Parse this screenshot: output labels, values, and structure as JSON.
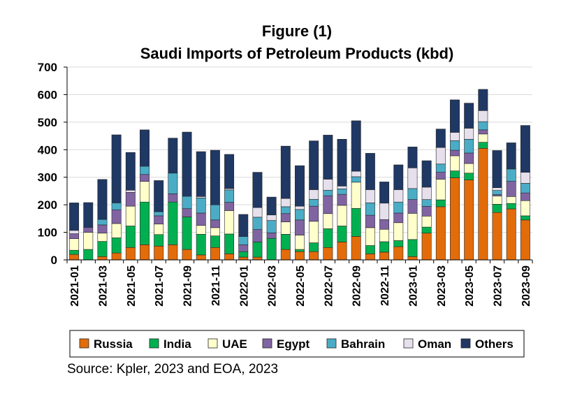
{
  "chart_data": {
    "type": "bar",
    "stacked": true,
    "title": "Figure (1)",
    "subtitle": "Saudi Imports of Petroleum Products (kbd)",
    "xlabel": "",
    "ylabel": "",
    "ylim": [
      0,
      700
    ],
    "yticks": [
      0,
      100,
      200,
      300,
      400,
      500,
      600,
      700
    ],
    "grid": true,
    "legend_position": "bottom",
    "categories": [
      "2021-01",
      "2021-02",
      "2021-03",
      "2021-04",
      "2021-05",
      "2021-06",
      "2021-07",
      "2021-08",
      "2021-09",
      "2021-10",
      "2021-11",
      "2021-12",
      "2022-01",
      "2022-02",
      "2022-03",
      "2022-04",
      "2022-05",
      "2022-06",
      "2022-07",
      "2022-08",
      "2022-09",
      "2022-10",
      "2022-11",
      "2022-12",
      "2023-01",
      "2023-02",
      "2023-03",
      "2023-04",
      "2023-05",
      "2023-06",
      "2023-07",
      "2023-08",
      "2023-09"
    ],
    "tick_labels": [
      "2021-01",
      "2021-03",
      "2021-05",
      "2021-07",
      "2021-09",
      "2021-11",
      "2022-01",
      "2022-03",
      "2022-05",
      "2022-07",
      "2022-09",
      "2022-11",
      "2023-01",
      "2023-03",
      "2023-05",
      "2023-07",
      "2023-09"
    ],
    "series": [
      {
        "name": "Russia",
        "color": "#E36C0A",
        "values": [
          20,
          0,
          12,
          25,
          45,
          55,
          50,
          55,
          38,
          18,
          45,
          22,
          10,
          10,
          0,
          38,
          30,
          30,
          45,
          65,
          85,
          22,
          28,
          48,
          12,
          97,
          193,
          298,
          290,
          405,
          172,
          185,
          145
        ]
      },
      {
        "name": "India",
        "color": "#00B050",
        "values": [
          15,
          38,
          55,
          55,
          78,
          155,
          42,
          155,
          118,
          75,
          42,
          72,
          20,
          55,
          78,
          55,
          8,
          32,
          68,
          58,
          102,
          30,
          38,
          22,
          62,
          22,
          25,
          25,
          25,
          22,
          30,
          20,
          15
        ]
      },
      {
        "name": "UAE",
        "color": "#FFFFCC",
        "values": [
          42,
          62,
          30,
          52,
          72,
          75,
          38,
          0,
          0,
          32,
          30,
          85,
          0,
          0,
          0,
          45,
          52,
          78,
          55,
          75,
          95,
          65,
          45,
          65,
          95,
          40,
          75,
          55,
          35,
          30,
          30,
          25,
          55
        ]
      },
      {
        "name": "Egypt",
        "color": "#8064A2",
        "values": [
          18,
          18,
          30,
          50,
          50,
          25,
          30,
          30,
          30,
          45,
          28,
          30,
          25,
          45,
          20,
          30,
          55,
          55,
          65,
          40,
          0,
          45,
          35,
          35,
          50,
          35,
          25,
          20,
          38,
          15,
          5,
          55,
          28
        ]
      },
      {
        "name": "Bahrain",
        "color": "#4BACC6",
        "values": [
          0,
          0,
          20,
          25,
          0,
          30,
          15,
          75,
          45,
          55,
          55,
          45,
          30,
          45,
          45,
          25,
          38,
          25,
          20,
          20,
          20,
          45,
          0,
          40,
          40,
          25,
          30,
          35,
          50,
          30,
          15,
          45,
          35
        ]
      },
      {
        "name": "Oman",
        "color": "#E6E0EC",
        "values": [
          12,
          0,
          0,
          0,
          8,
          0,
          0,
          0,
          0,
          5,
          0,
          5,
          0,
          35,
          20,
          30,
          12,
          35,
          40,
          10,
          20,
          48,
          60,
          45,
          75,
          45,
          60,
          30,
          40,
          40,
          10,
          0,
          40
        ]
      },
      {
        "name": "Others",
        "color": "#1F3864",
        "values": [
          100,
          90,
          145,
          247,
          137,
          132,
          113,
          127,
          233,
          163,
          198,
          124,
          80,
          128,
          65,
          190,
          147,
          177,
          160,
          170,
          183,
          132,
          77,
          90,
          76,
          96,
          67,
          118,
          91,
          77,
          135,
          95,
          170
        ]
      }
    ]
  },
  "source": "Source: Kpler, 2023 and EOA, 2023"
}
